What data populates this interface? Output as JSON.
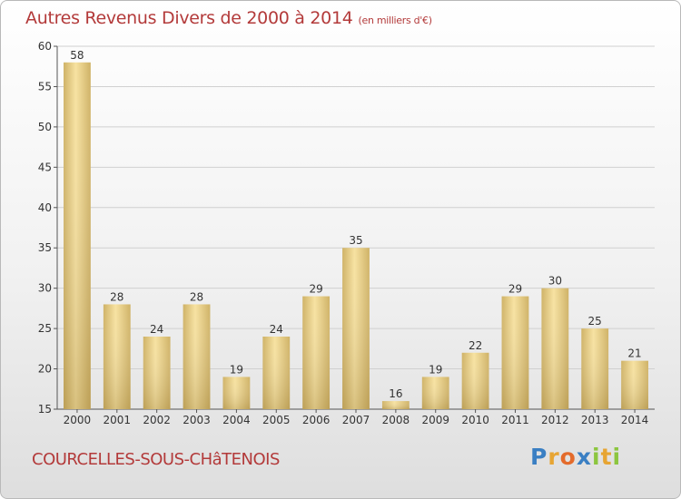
{
  "title": "Autres Revenus Divers de 2000 à 2014",
  "unit": "(en milliers d'€)",
  "commune": "COURCELLES-SOUS-CHâTENOIS",
  "logo": {
    "letters": [
      "P",
      "r",
      "o",
      "x",
      "i",
      "t",
      "i"
    ],
    "colors": [
      "#3a7fc3",
      "#e7a533",
      "#e46b2b",
      "#3a7fc3",
      "#8cc63f",
      "#e7a533",
      "#8cc63f"
    ]
  },
  "colors": {
    "bar_light": "#f7e2a1",
    "bar_dark": "#cfb266",
    "grid": "#d0d0d0",
    "text": "#333333"
  },
  "chart_data": {
    "type": "bar",
    "categories": [
      "2000",
      "2001",
      "2002",
      "2003",
      "2004",
      "2005",
      "2006",
      "2007",
      "2008",
      "2009",
      "2010",
      "2011",
      "2012",
      "2013",
      "2014"
    ],
    "values": [
      58,
      28,
      24,
      28,
      19,
      24,
      29,
      35,
      16,
      19,
      22,
      29,
      30,
      25,
      21
    ],
    "ylim": [
      15,
      60
    ],
    "yticks": [
      15,
      20,
      25,
      30,
      35,
      40,
      45,
      50,
      55,
      60
    ],
    "grid": true,
    "data_labels": true
  }
}
